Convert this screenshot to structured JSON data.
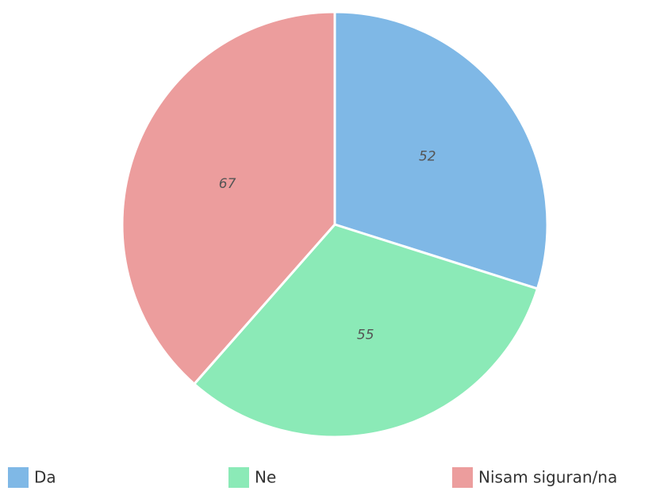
{
  "chart_data": {
    "type": "pie",
    "categories": [
      "Da",
      "Ne",
      "Nisam siguran/na"
    ],
    "values": [
      52,
      55,
      67
    ],
    "colors": [
      "#7fb8e6",
      "#8beab7",
      "#ec9d9d"
    ]
  }
}
